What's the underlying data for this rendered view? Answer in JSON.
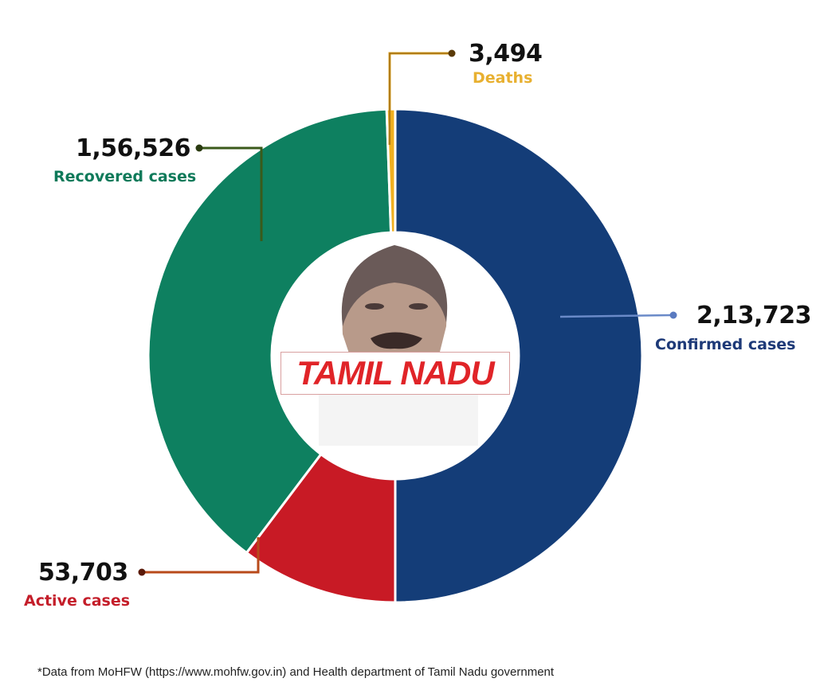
{
  "chart_data": {
    "type": "pie",
    "variant": "donut",
    "title": "",
    "center_label": "TAMIL NADU",
    "categories": [
      "Confirmed cases",
      "Active cases",
      "Recovered cases",
      "Deaths"
    ],
    "values": [
      213723,
      53703,
      156526,
      3494
    ],
    "display_values": [
      "2,13,723",
      "53,703",
      "1,56,526",
      "3,494"
    ],
    "colors": [
      "#143d78",
      "#c81a25",
      "#0e8060",
      "#f0b020"
    ],
    "annotations": [
      {
        "label": "Confirmed cases",
        "value": "2,13,723",
        "position": "right"
      },
      {
        "label": "Active cases",
        "value": "53,703",
        "position": "bottom-left"
      },
      {
        "label": "Recovered cases",
        "value": "1,56,526",
        "position": "top-left"
      },
      {
        "label": "Deaths",
        "value": "3,494",
        "position": "top"
      }
    ],
    "legend": "none (direct labels)"
  },
  "labels": {
    "confirmed": {
      "value": "2,13,723",
      "text": "Confirmed cases",
      "color": "#1e3a78"
    },
    "active": {
      "value": "53,703",
      "text": "Active cases",
      "color": "#c41e2a"
    },
    "recovered": {
      "value": "1,56,526",
      "text": "Recovered cases",
      "color": "#0e7a5a"
    },
    "deaths": {
      "value": "3,494",
      "text": "Deaths",
      "color": "#e8b030"
    }
  },
  "center": {
    "title": "TAMIL NADU",
    "title_color": "#e02428"
  },
  "footnote": "*Data from MoHFW (https://www.mohfw.gov.in) and Health department of Tamil Nadu government"
}
